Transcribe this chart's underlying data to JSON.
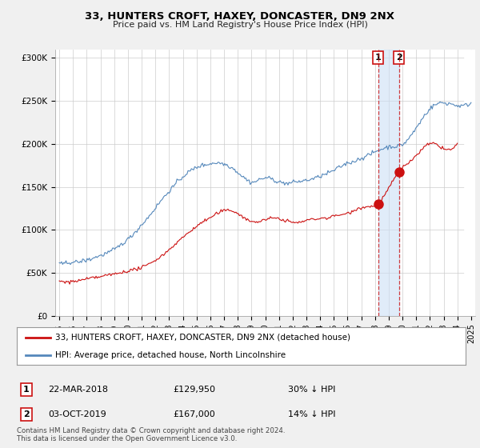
{
  "title": "33, HUNTERS CROFT, HAXEY, DONCASTER, DN9 2NX",
  "subtitle": "Price paid vs. HM Land Registry's House Price Index (HPI)",
  "ylabel_ticks": [
    "£0",
    "£50K",
    "£100K",
    "£150K",
    "£200K",
    "£250K",
    "£300K"
  ],
  "ytick_values": [
    0,
    50000,
    100000,
    150000,
    200000,
    250000,
    300000
  ],
  "ylim": [
    0,
    310000
  ],
  "hpi_color": "#5588bb",
  "price_color": "#cc1111",
  "transaction1_x": 2018.22,
  "transaction1_y": 129950,
  "transaction2_x": 2019.75,
  "transaction2_y": 167000,
  "transaction1_date": "22-MAR-2018",
  "transaction2_date": "03-OCT-2019",
  "transaction1_price": "£129,950",
  "transaction2_price": "£167,000",
  "transaction1_pct": "30% ↓ HPI",
  "transaction2_pct": "14% ↓ HPI",
  "legend_label1": "33, HUNTERS CROFT, HAXEY, DONCASTER, DN9 2NX (detached house)",
  "legend_label2": "HPI: Average price, detached house, North Lincolnshire",
  "footer": "Contains HM Land Registry data © Crown copyright and database right 2024.\nThis data is licensed under the Open Government Licence v3.0.",
  "background_color": "#f0f0f0",
  "plot_bg_color": "#ffffff",
  "xlim_left": 1994.7,
  "xlim_right": 2025.3
}
